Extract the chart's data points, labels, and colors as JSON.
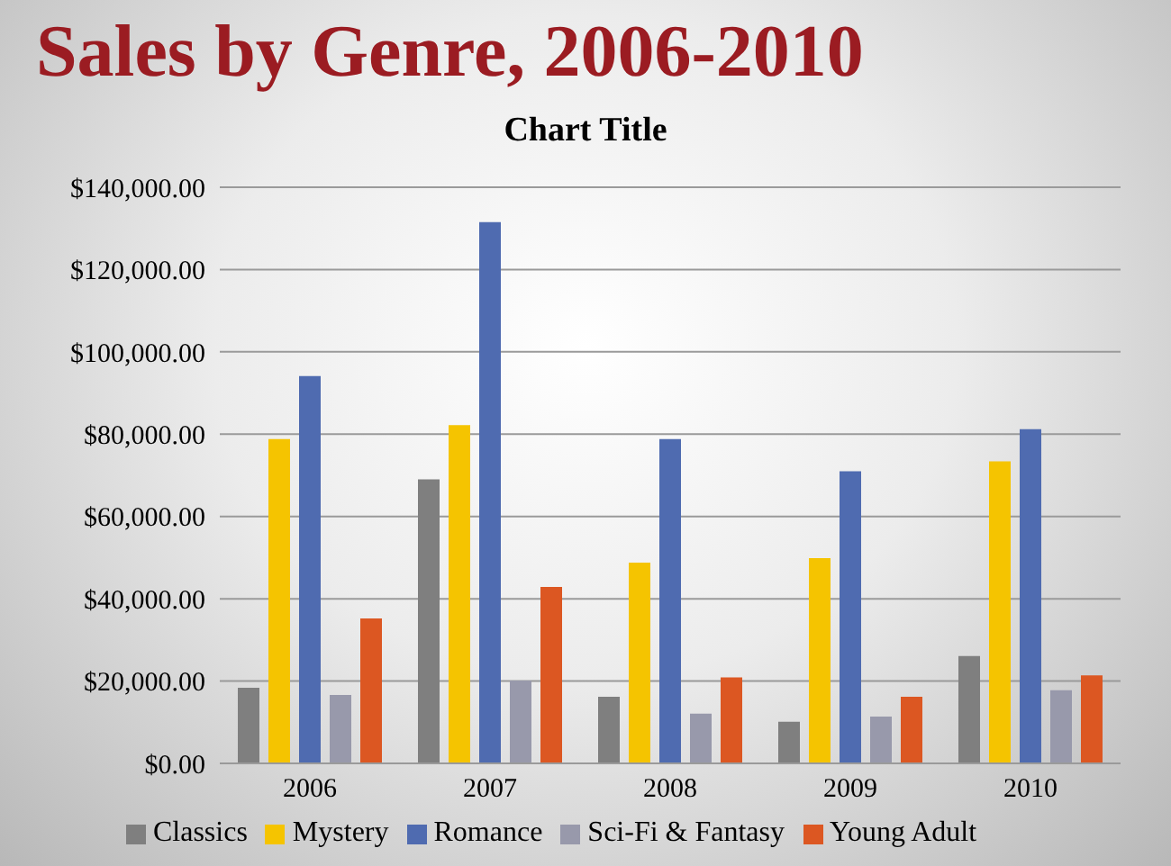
{
  "chart_data": {
    "type": "bar",
    "title": "Sales by Genre, 2006-2010",
    "subtitle": "Chart Title",
    "categories": [
      "2006",
      "2007",
      "2008",
      "2009",
      "2010"
    ],
    "series": [
      {
        "name": "Classics",
        "color": "#7f7f7f",
        "values": [
          18400,
          69000,
          16200,
          10100,
          26100
        ]
      },
      {
        "name": "Mystery",
        "color": "#f5c400",
        "values": [
          78800,
          82200,
          48800,
          49900,
          73400
        ]
      },
      {
        "name": "Romance",
        "color": "#4f6bb0",
        "values": [
          94100,
          131500,
          78800,
          71000,
          81200
        ]
      },
      {
        "name": "Sci-Fi & Fantasy",
        "color": "#9899ab",
        "values": [
          16600,
          20100,
          12100,
          11400,
          17800
        ]
      },
      {
        "name": "Young Adult",
        "color": "#dc5722",
        "values": [
          35200,
          42900,
          20900,
          16200,
          21400
        ]
      }
    ],
    "ylim": [
      0,
      140000
    ],
    "yticks": [
      {
        "value": 0,
        "label": "$0.00"
      },
      {
        "value": 20000,
        "label": "$20,000.00"
      },
      {
        "value": 40000,
        "label": "$40,000.00"
      },
      {
        "value": 60000,
        "label": "$60,000.00"
      },
      {
        "value": 80000,
        "label": "$80,000.00"
      },
      {
        "value": 100000,
        "label": "$100,000.00"
      },
      {
        "value": 120000,
        "label": "$120,000.00"
      },
      {
        "value": 140000,
        "label": "$140,000.00"
      }
    ],
    "grid": "y",
    "legend": "bottom"
  }
}
